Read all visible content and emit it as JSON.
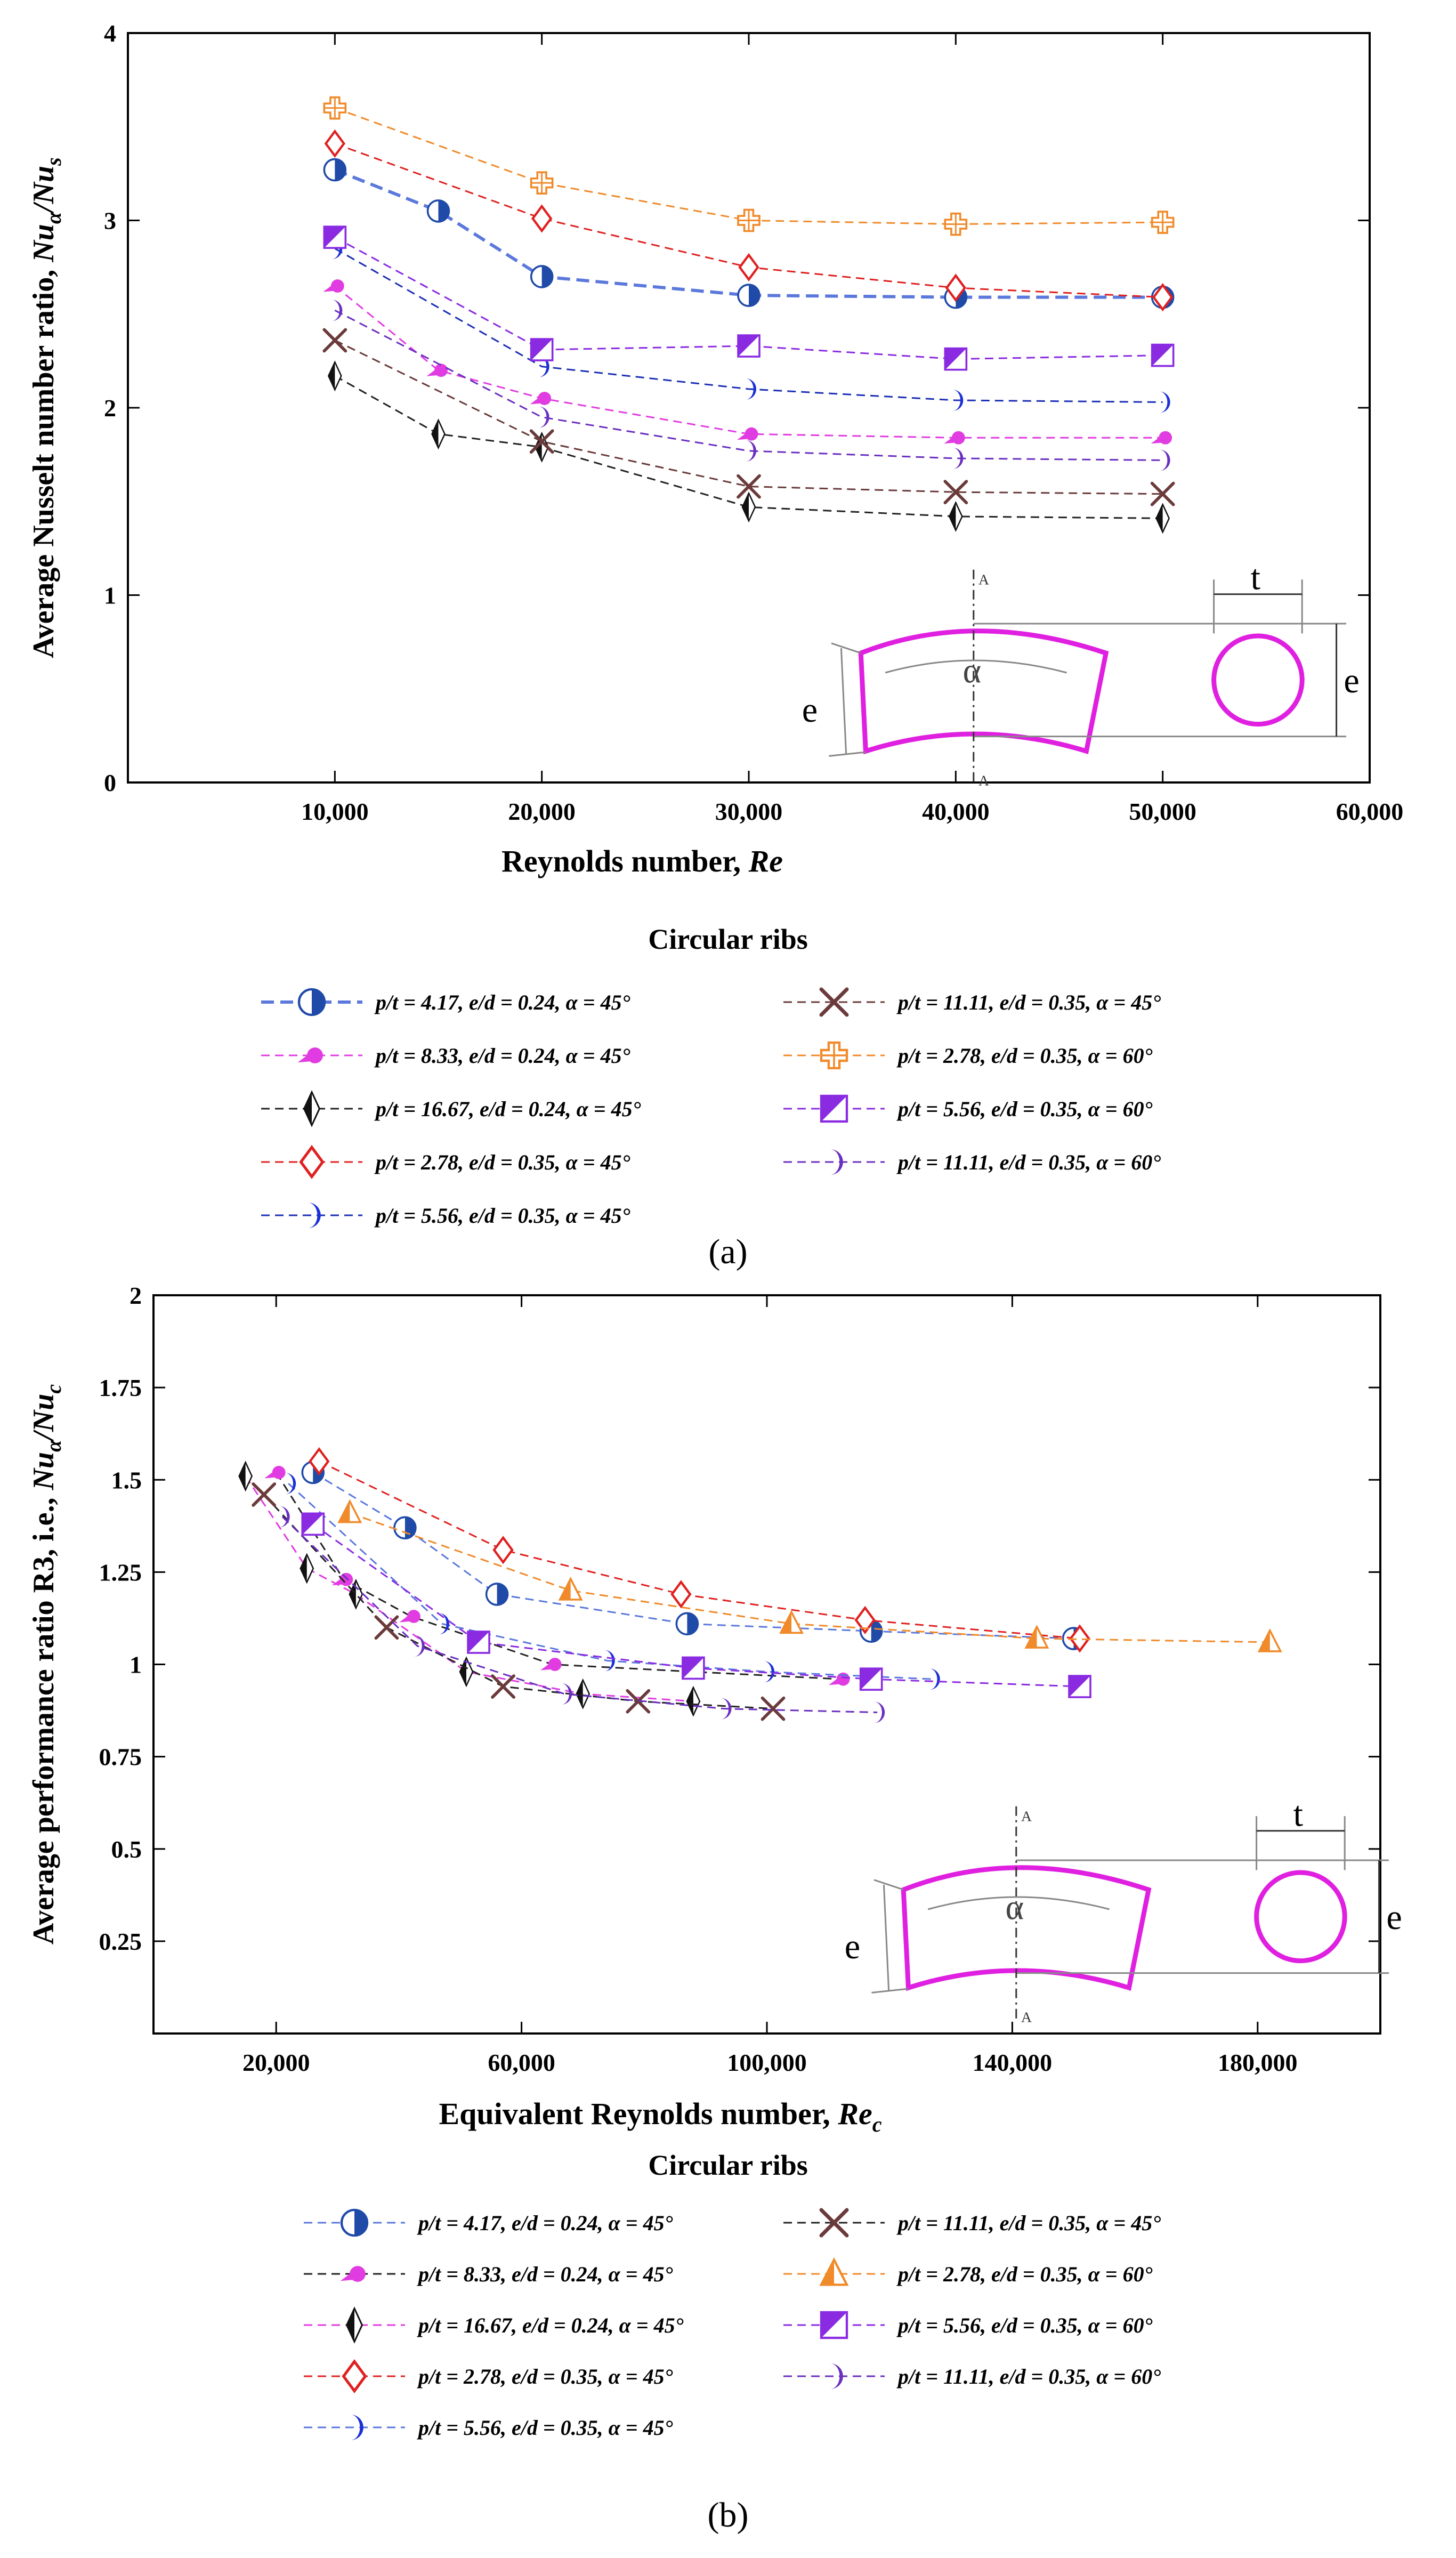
{
  "panels": [
    {
      "caption": "(a)",
      "chart_data": {
        "type": "line",
        "ylabel": "Average Nusselt number ratio, Nuα/Nus",
        "ylabel_main": "Average Nusselt number ratio, ",
        "ylabel_sym": "Nu",
        "ylabel_sub1": "α",
        "ylabel_slash": "/Nu",
        "ylabel_sub2": "s",
        "xlabel": "Reynolds number, Re",
        "xlabel_main": "Reynolds number, ",
        "xlabel_sym": "Re",
        "xlim": [
          0,
          60000
        ],
        "ylim": [
          0,
          4
        ],
        "xticks": [
          10000,
          20000,
          30000,
          40000,
          50000,
          60000
        ],
        "xtick_labels": [
          "10,000",
          "20,000",
          "30,000",
          "40,000",
          "50,000",
          "60,000"
        ],
        "yticks": [
          0,
          1,
          2,
          3,
          4
        ],
        "ytick_labels": [
          "0",
          "1",
          "2",
          "3",
          "4"
        ],
        "legend_title": "Circular ribs",
        "series": [
          {
            "name": "p/t = 4.17, e/d = 0.24, α = 45°",
            "color": "#5b78dc",
            "marker": "halfcircle",
            "mcolor": "#1f4aa8",
            "width": 6,
            "x": [
              10000,
              15000,
              20000,
              30000,
              40000,
              50000
            ],
            "y": [
              3.27,
              3.05,
              2.7,
              2.6,
              2.59,
              2.59
            ]
          },
          {
            "name": "p/t = 8.33, e/d = 0.24, α = 45°",
            "color": "#e13ce1",
            "marker": "comet",
            "mcolor": "#e13ce1",
            "width": 3,
            "x": [
              10000,
              15000,
              20000,
              30000,
              40000,
              50000
            ],
            "y": [
              2.65,
              2.2,
              2.05,
              1.86,
              1.84,
              1.84
            ]
          },
          {
            "name": "p/t = 16.67, e/d = 0.24, α = 45°",
            "color": "#222222",
            "marker": "diamond-half",
            "mcolor": "#111111",
            "width": 3,
            "x": [
              10000,
              15000,
              20000,
              30000,
              40000,
              50000
            ],
            "y": [
              2.17,
              1.86,
              1.79,
              1.47,
              1.42,
              1.41
            ]
          },
          {
            "name": "p/t = 2.78, e/d = 0.35, α = 45°",
            "color": "#e02020",
            "marker": "diamond-open",
            "mcolor": "#e02020",
            "width": 3,
            "x": [
              10000,
              20000,
              30000,
              40000,
              50000
            ],
            "y": [
              3.41,
              3.01,
              2.75,
              2.64,
              2.59
            ]
          },
          {
            "name": "p/t = 5.56, e/d = 0.35, α = 45°",
            "color": "#1c2fb5",
            "marker": "crescent",
            "mcolor": "#1c2fd8",
            "width": 3,
            "x": [
              10000,
              20000,
              30000,
              40000,
              50000
            ],
            "y": [
              2.85,
              2.22,
              2.1,
              2.04,
              2.03
            ]
          },
          {
            "name": "p/t = 11.11, e/d = 0.35, α = 45°",
            "color": "#6b3a3a",
            "marker": "x",
            "mcolor": "#6b3a3a",
            "width": 3,
            "x": [
              10000,
              20000,
              30000,
              40000,
              50000
            ],
            "y": [
              2.36,
              1.82,
              1.58,
              1.55,
              1.54
            ]
          },
          {
            "name": "p/t = 2.78, e/d = 0.35, α = 60°",
            "color": "#f08a2a",
            "marker": "cross-box",
            "mcolor": "#f08a2a",
            "width": 3,
            "x": [
              10000,
              20000,
              30000,
              40000,
              50000
            ],
            "y": [
              3.6,
              3.2,
              3.0,
              2.98,
              2.99
            ]
          },
          {
            "name": "p/t = 5.56, e/d = 0.35, α = 60°",
            "color": "#8a2be2",
            "marker": "square-half",
            "mcolor": "#8a2be2",
            "width": 3,
            "x": [
              10000,
              20000,
              30000,
              40000,
              50000
            ],
            "y": [
              2.91,
              2.31,
              2.33,
              2.26,
              2.28
            ]
          },
          {
            "name": "p/t = 11.11, e/d = 0.35, α = 60°",
            "color": "#6a2fc0",
            "marker": "crescent",
            "mcolor": "#6a2fc0",
            "width": 3,
            "x": [
              10000,
              20000,
              30000,
              40000,
              50000
            ],
            "y": [
              2.52,
              1.95,
              1.77,
              1.73,
              1.72
            ]
          }
        ]
      }
    },
    {
      "caption": "(b)",
      "chart_data": {
        "type": "line",
        "ylabel": "Average performance ratio R3, i.e., Nuα/Nuc",
        "ylabel_main": "Average performance ratio R3, i.e., ",
        "ylabel_sym": "Nu",
        "ylabel_sub1": "α",
        "ylabel_slash": "/Nu",
        "ylabel_sub2": "c",
        "xlabel": "Equivalent Reynolds number, Rec",
        "xlabel_main": "Equivalent Reynolds number, ",
        "xlabel_sym": "Re",
        "xlabel_sub": "c",
        "xlim": [
          0,
          200000
        ],
        "ylim": [
          0,
          2
        ],
        "xticks": [
          20000,
          60000,
          100000,
          140000,
          180000
        ],
        "xtick_labels": [
          "20,000",
          "60,000",
          "100,000",
          "140,000",
          "180,000"
        ],
        "yticks": [
          0.25,
          0.5,
          0.75,
          1,
          1.25,
          1.5,
          1.75,
          2
        ],
        "ytick_labels": [
          "0.25",
          "0.5",
          "0.75",
          "1",
          "1.25",
          "1.5",
          "1.75",
          "2"
        ],
        "legend_title": "Circular ribs",
        "series": [
          {
            "name": "p/t = 4.17, e/d = 0.24, α = 45°",
            "color": "#5b78dc",
            "marker": "halfcircle",
            "mcolor": "#1f4aa8",
            "width": 3,
            "x": [
              26000,
              41000,
              56000,
              87000,
              117000,
              150000
            ],
            "y": [
              1.52,
              1.37,
              1.19,
              1.11,
              1.09,
              1.07
            ]
          },
          {
            "name": "p/t = 8.33, e/d = 0.24, α = 45°",
            "color": "#222222",
            "marker": "comet",
            "mcolor": "#e13ce1",
            "width": 3,
            "x": [
              20000,
              31000,
              42000,
              65000,
              88000,
              112000
            ],
            "y": [
              1.52,
              1.23,
              1.13,
              1.0,
              0.98,
              0.96
            ]
          },
          {
            "name": "p/t = 16.67, e/d = 0.24, α = 45°",
            "color": "#e13ce1",
            "marker": "diamond-half",
            "mcolor": "#111111",
            "width": 3,
            "x": [
              15000,
              25000,
              33000,
              51000,
              70000,
              88000
            ],
            "y": [
              1.51,
              1.26,
              1.19,
              0.98,
              0.92,
              0.9
            ]
          },
          {
            "name": "p/t = 2.78, e/d = 0.35, α = 45°",
            "color": "#e02020",
            "marker": "diamond-open",
            "mcolor": "#e02020",
            "width": 3,
            "x": [
              27000,
              57000,
              86000,
              116000,
              151000
            ],
            "y": [
              1.55,
              1.31,
              1.19,
              1.12,
              1.07
            ]
          },
          {
            "name": "p/t = 5.56, e/d = 0.35, α = 45°",
            "color": "#5b78dc",
            "marker": "crescent",
            "mcolor": "#1c2fd8",
            "width": 3,
            "x": [
              22000,
              47000,
              74000,
              100000,
              127000
            ],
            "y": [
              1.49,
              1.11,
              1.01,
              0.98,
              0.96
            ]
          },
          {
            "name": "p/t = 11.11, e/d = 0.35, α = 45°",
            "color": "#222222",
            "marker": "x",
            "mcolor": "#6b3a3a",
            "width": 3,
            "x": [
              18000,
              38000,
              57000,
              79000,
              101000
            ],
            "y": [
              1.46,
              1.1,
              0.94,
              0.9,
              0.88
            ]
          },
          {
            "name": "p/t = 2.78, e/d = 0.35, α = 60°",
            "color": "#f08a2a",
            "marker": "triangle-half",
            "mcolor": "#f08a2a",
            "width": 3,
            "x": [
              32000,
              68000,
              104000,
              144000,
              182000
            ],
            "y": [
              1.41,
              1.2,
              1.11,
              1.07,
              1.06
            ]
          },
          {
            "name": "p/t = 5.56, e/d = 0.35, α = 60°",
            "color": "#8a2be2",
            "marker": "square-half",
            "mcolor": "#8a2be2",
            "width": 3,
            "x": [
              26000,
              53000,
              88000,
              117000,
              151000
            ],
            "y": [
              1.38,
              1.06,
              0.99,
              0.96,
              0.94
            ]
          },
          {
            "name": "p/t = 11.11, e/d = 0.35, α = 60°",
            "color": "#6a2fc0",
            "marker": "crescent",
            "mcolor": "#6a2fc0",
            "width": 3,
            "x": [
              21000,
              43000,
              67000,
              93000,
              118000
            ],
            "y": [
              1.4,
              1.05,
              0.92,
              0.88,
              0.87
            ]
          }
        ]
      }
    }
  ],
  "inset": {
    "left_e": "e",
    "alpha": "α",
    "a_top": "A",
    "a_bottom": "A",
    "t": "t",
    "right_e": "e"
  },
  "colors": {
    "rib": "#e020e0",
    "axis": "#000000",
    "guide": "#888888"
  }
}
